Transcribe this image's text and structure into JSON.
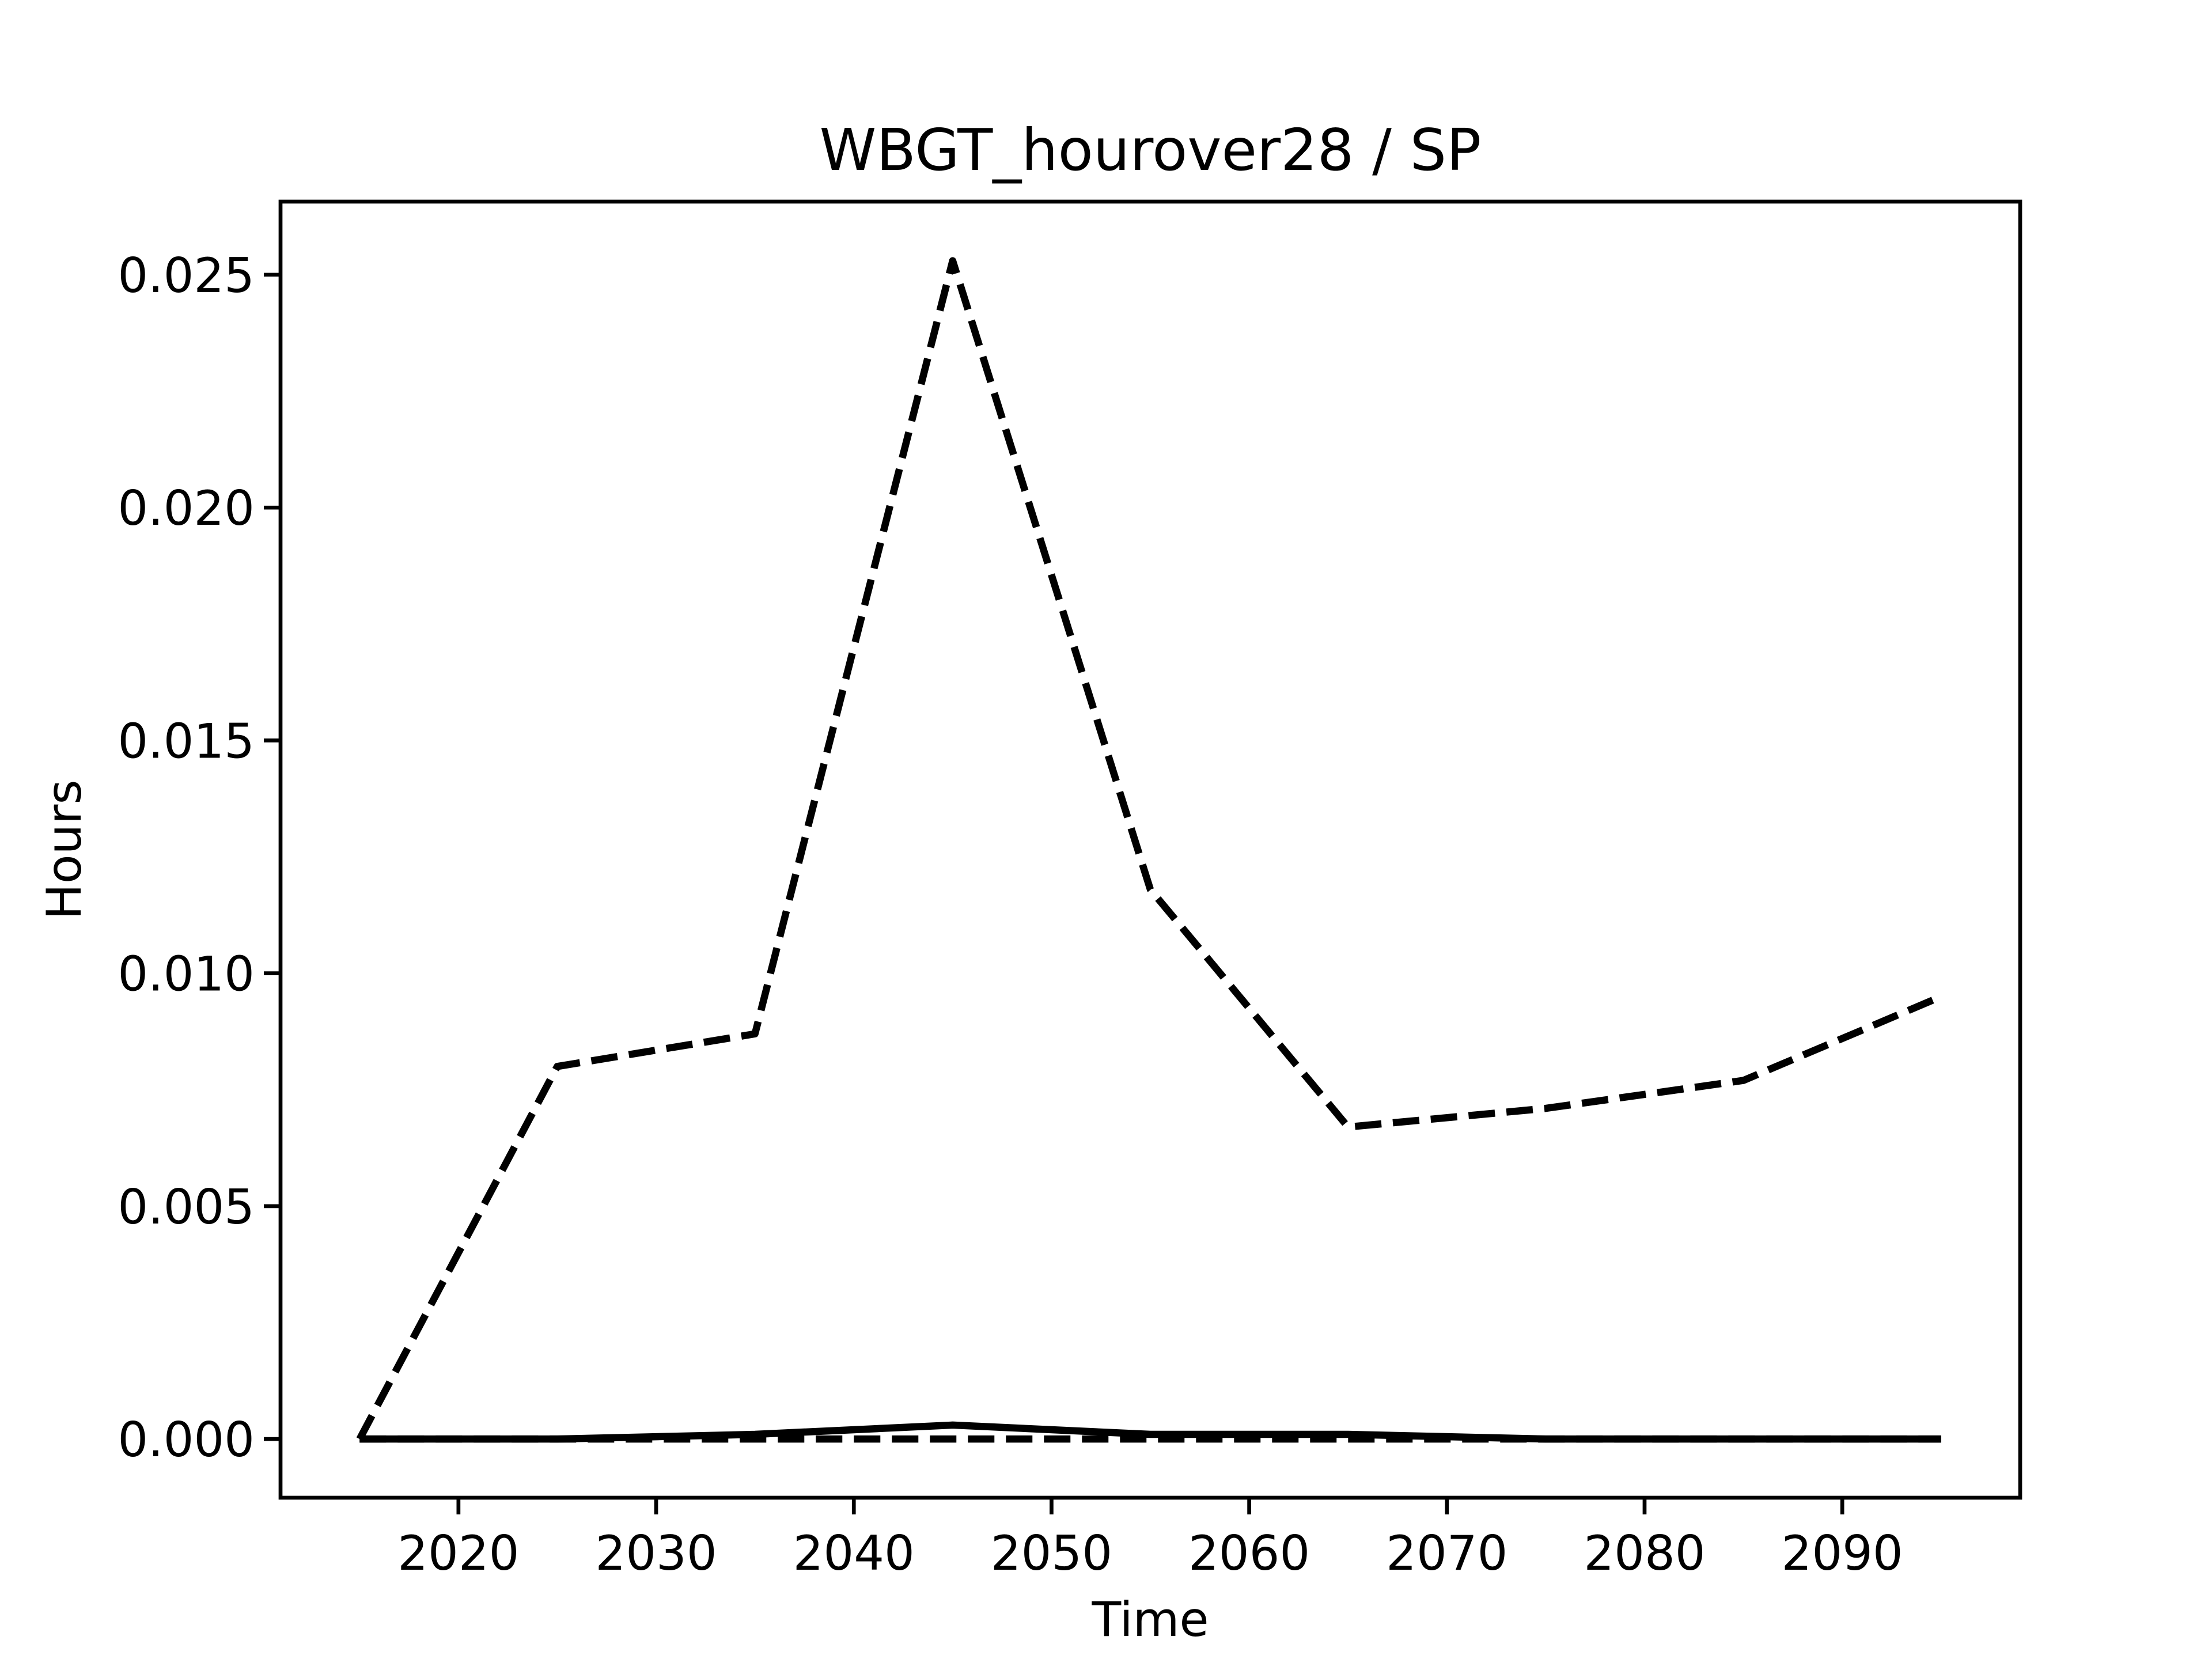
{
  "chart_data": {
    "type": "line",
    "title": "WBGT_hourover28 / SP",
    "xlabel": "Time",
    "ylabel": "Hours",
    "x": [
      2015,
      2025,
      2035,
      2045,
      2055,
      2065,
      2075,
      2085,
      2095
    ],
    "series": [
      {
        "color": "#000000",
        "linestyle": "dashed",
        "values": [
          0,
          0.008,
          0.0087,
          0.0253,
          0.0118,
          0.0067,
          0.0071,
          0.0077,
          0.0095
        ]
      },
      {
        "color": "#000000",
        "linestyle": "solid",
        "values": [
          0,
          0,
          0.0001,
          0.0003,
          0.0001,
          0.0001,
          0,
          0,
          0
        ]
      },
      {
        "color": "#000000",
        "linestyle": "dashed",
        "values": [
          0,
          0,
          0,
          0,
          0,
          0,
          0,
          0,
          0
        ]
      }
    ],
    "xlim": [
      2011,
      2099
    ],
    "xticks": [
      2020,
      2030,
      2040,
      2050,
      2060,
      2070,
      2080,
      2090
    ],
    "ylim": [
      -0.00126,
      0.02657
    ],
    "yticks": [
      {
        "value": 0,
        "label": "0.000"
      },
      {
        "value": 0.005,
        "label": "0.005"
      },
      {
        "value": 0.01,
        "label": "0.010"
      },
      {
        "value": 0.015,
        "label": "0.015"
      },
      {
        "value": 0.02,
        "label": "0.020"
      },
      {
        "value": 0.025,
        "label": "0.025"
      }
    ],
    "grid": false
  }
}
